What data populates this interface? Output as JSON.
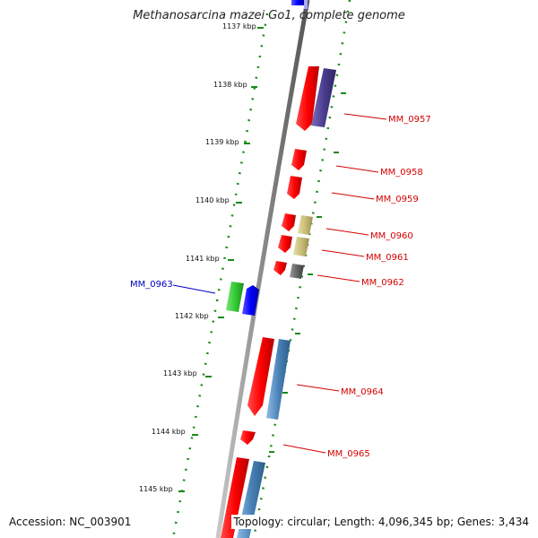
{
  "title": "Methanosarcina mazei Go1, complete genome",
  "footer": {
    "accession": "Accession: NC_003901",
    "summary": "Topology: circular; Length: 4,096,345 bp; Genes: 3,434"
  },
  "kbp_labels": [
    "1137 kbp",
    "1138 kbp",
    "1139 kbp",
    "1140 kbp",
    "1141 kbp",
    "1142 kbp",
    "1143 kbp",
    "1144 kbp",
    "1145 kbp"
  ],
  "genes": [
    {
      "label": "MM_0957",
      "color": "#d40000"
    },
    {
      "label": "MM_0958",
      "color": "#d40000"
    },
    {
      "label": "MM_0959",
      "color": "#d40000"
    },
    {
      "label": "MM_0960",
      "color": "#d40000"
    },
    {
      "label": "MM_0961",
      "color": "#d40000"
    },
    {
      "label": "MM_0962",
      "color": "#d40000"
    },
    {
      "label": "MM_0963",
      "color": "#0000c0"
    },
    {
      "label": "MM_0964",
      "color": "#d40000"
    },
    {
      "label": "MM_0965",
      "color": "#d40000"
    }
  ],
  "colors": {
    "backbone": "#8a8a8a",
    "ruler": "#1a8a1a",
    "cds_red": "#ff0000",
    "cds_blue": "#0000ff",
    "cds_green": "#33cc33",
    "rna_purple": "#4b3d8f",
    "rna_steel": "#4a82b8",
    "rna_khaki": "#c8bd78",
    "rna_grey": "#666666"
  }
}
